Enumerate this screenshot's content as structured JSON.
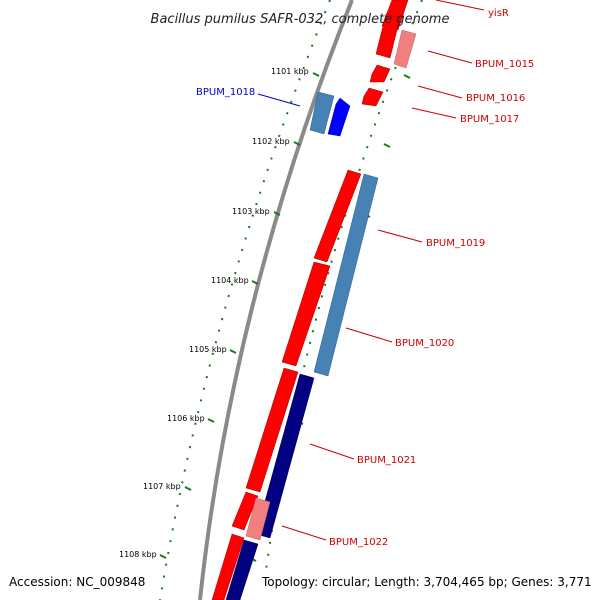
{
  "title": "Bacillus pumilus SAFR-032, complete genome",
  "footer": {
    "accession": "Accession: NC_009848",
    "summary": "Topology: circular; Length: 3,704,465 bp; Genes: 3,771"
  },
  "scale_labels": [
    "1101 kbp",
    "1102 kbp",
    "1103 kbp",
    "1104 kbp",
    "1105 kbp",
    "1106 kbp",
    "1107 kbp",
    "1108 kbp"
  ],
  "gene_labels": [
    "yisR",
    "BPUM_1015",
    "BPUM_1016",
    "BPUM_1017",
    "BPUM_1018",
    "BPUM_1019",
    "BPUM_1020",
    "BPUM_1021",
    "BPUM_1022"
  ],
  "colors": {
    "backbone": "#8a8a8a",
    "forward_cds": "#ff0000",
    "forward_cds_light": "#f08080",
    "reverse_cds": "#000080",
    "reverse_cds_light": "#4682b4",
    "label_red": "#cc0000",
    "label_blue": "#0000cc",
    "ticks": "#1a7a1a"
  }
}
